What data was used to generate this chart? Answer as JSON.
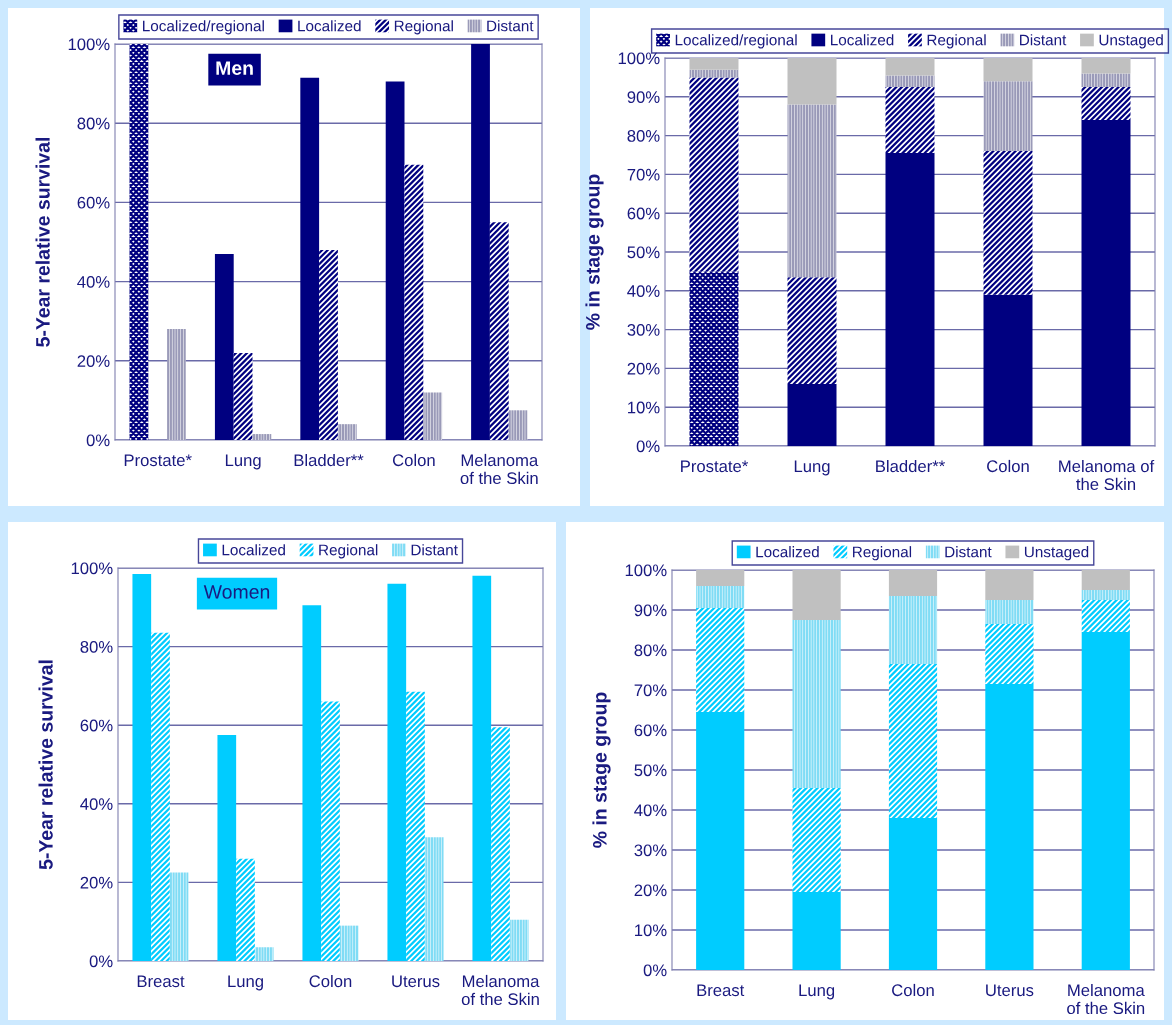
{
  "chart_data": [
    {
      "type": "bar",
      "ylabel": "5-Year relative survival",
      "categories": [
        "Prostate*",
        "Lung",
        "Bladder**",
        "Colon",
        "Melanoma\nof the Skin"
      ],
      "series": [
        {
          "name": "Localized/regional",
          "color": "#000080",
          "values": [
            100,
            null,
            null,
            null,
            null
          ]
        },
        {
          "name": "Localized",
          "color": "#000080",
          "values": [
            null,
            47,
            91.5,
            90.5,
            100
          ]
        },
        {
          "name": "Regional",
          "color": "#000080",
          "values": [
            null,
            22,
            48,
            69.5,
            55
          ]
        },
        {
          "name": "Distant",
          "color": "#9a9ab8",
          "values": [
            28,
            1.5,
            4,
            12,
            7.5
          ]
        }
      ],
      "ylim": [
        0,
        100
      ],
      "yticks": [
        {
          "value": 0,
          "label": "0%"
        },
        {
          "value": 20,
          "label": "20%"
        },
        {
          "value": 40,
          "label": "40%"
        },
        {
          "value": 60,
          "label": "60%"
        },
        {
          "value": 80,
          "label": "80%"
        },
        {
          "value": 100,
          "label": "100%"
        }
      ],
      "annotations": [
        "Men"
      ],
      "grid": "y",
      "legend": "top"
    },
    {
      "type": "bar",
      "stacked": true,
      "ylabel": "% in stage group",
      "categories": [
        "Prostate*",
        "Lung",
        "Bladder**",
        "Colon",
        "Melanoma of\nthe Skin"
      ],
      "series": [
        {
          "name": "Localized/regional",
          "color": "#000080",
          "values": [
            45,
            null,
            null,
            null,
            null
          ]
        },
        {
          "name": "Localized",
          "color": "#000080",
          "values": [
            null,
            16,
            75.5,
            39,
            84
          ]
        },
        {
          "name": "Regional",
          "color": "#000080",
          "values": [
            50,
            27.5,
            17,
            37,
            8.5
          ]
        },
        {
          "name": "Distant",
          "color": "#9a9ab8",
          "values": [
            2,
            44.5,
            3,
            18,
            3.5
          ]
        },
        {
          "name": "Unstaged",
          "color": "#c0c0c0",
          "values": [
            3,
            12,
            4.5,
            6,
            4
          ]
        }
      ],
      "ylim": [
        0,
        100
      ],
      "yticks": [
        {
          "value": 0,
          "label": "0%"
        },
        {
          "value": 10,
          "label": "10%"
        },
        {
          "value": 20,
          "label": "20%"
        },
        {
          "value": 30,
          "label": "30%"
        },
        {
          "value": 40,
          "label": "40%"
        },
        {
          "value": 50,
          "label": "50%"
        },
        {
          "value": 60,
          "label": "60%"
        },
        {
          "value": 70,
          "label": "70%"
        },
        {
          "value": 80,
          "label": "80%"
        },
        {
          "value": 90,
          "label": "90%"
        },
        {
          "value": 100,
          "label": "100%"
        }
      ],
      "grid": "y",
      "legend": "top"
    },
    {
      "type": "bar",
      "ylabel": "5-Year relative survival",
      "categories": [
        "Breast",
        "Lung",
        "Colon",
        "Uterus",
        "Melanoma\nof the Skin"
      ],
      "series": [
        {
          "name": "Localized",
          "color": "#00ccff",
          "values": [
            98.5,
            57.5,
            90.5,
            96,
            98
          ]
        },
        {
          "name": "Regional",
          "color": "#00ccff",
          "values": [
            83.5,
            26,
            66,
            68.5,
            59.5
          ]
        },
        {
          "name": "Distant",
          "color": "#80dcf5",
          "values": [
            22.5,
            3.5,
            9,
            31.5,
            10.5
          ]
        }
      ],
      "ylim": [
        0,
        100
      ],
      "yticks": [
        {
          "value": 0,
          "label": "0%"
        },
        {
          "value": 20,
          "label": "20%"
        },
        {
          "value": 40,
          "label": "40%"
        },
        {
          "value": 60,
          "label": "60%"
        },
        {
          "value": 80,
          "label": "80%"
        },
        {
          "value": 100,
          "label": "100%"
        }
      ],
      "annotations": [
        "Women"
      ],
      "grid": "y",
      "legend": "top"
    },
    {
      "type": "bar",
      "stacked": true,
      "ylabel": "% in stage group",
      "categories": [
        "Breast",
        "Lung",
        "Colon",
        "Uterus",
        "Melanoma\nof the Skin"
      ],
      "series": [
        {
          "name": "Localized",
          "color": "#00ccff",
          "values": [
            64.5,
            19.5,
            38,
            71.5,
            84.5
          ]
        },
        {
          "name": "Regional",
          "color": "#00ccff",
          "values": [
            26,
            26,
            38.5,
            15,
            8
          ]
        },
        {
          "name": "Distant",
          "color": "#80dcf5",
          "values": [
            5.5,
            42,
            17,
            6,
            2.5
          ]
        },
        {
          "name": "Unstaged",
          "color": "#c0c0c0",
          "values": [
            4,
            12.5,
            6.5,
            7.5,
            5
          ]
        }
      ],
      "ylim": [
        0,
        100
      ],
      "yticks": [
        {
          "value": 0,
          "label": "0%"
        },
        {
          "value": 10,
          "label": "10%"
        },
        {
          "value": 20,
          "label": "20%"
        },
        {
          "value": 30,
          "label": "30%"
        },
        {
          "value": 40,
          "label": "40%"
        },
        {
          "value": 50,
          "label": "50%"
        },
        {
          "value": 60,
          "label": "60%"
        },
        {
          "value": 70,
          "label": "70%"
        },
        {
          "value": 80,
          "label": "80%"
        },
        {
          "value": 90,
          "label": "90%"
        },
        {
          "value": 100,
          "label": "100%"
        }
      ],
      "grid": "y",
      "legend": "top"
    }
  ]
}
